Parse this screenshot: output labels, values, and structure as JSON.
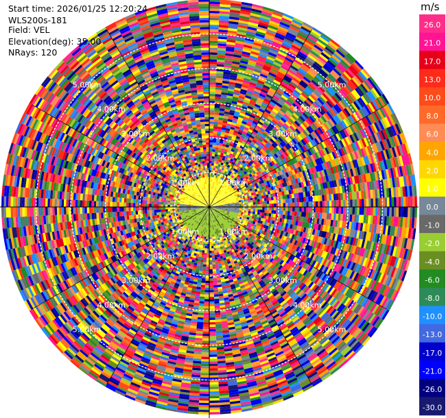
{
  "header": {
    "start_time": "Start time: 2026/01/25 12:20:24",
    "instrument": "WLS200s-181",
    "field": "Field: VEL",
    "elevation": "Elevation(deg): 35.00",
    "nrays": "NRays: 120"
  },
  "chart_data": {
    "type": "heatmap",
    "projection": "polar-ppi",
    "field": "VEL",
    "units": "m/s",
    "elevation_deg": 35.0,
    "n_rays": 120,
    "range_max_km": 6.0,
    "range_rings_km": [
      1.0,
      2.0,
      3.0,
      4.0,
      5.0
    ],
    "ring_labels": [
      "1.00km",
      "2.00km",
      "3.00km",
      "4.00km",
      "5.00km"
    ],
    "colorbar": {
      "label": "m/s",
      "ticks": [
        "26.0",
        "21.0",
        "17.0",
        "13.0",
        "10.0",
        "8.0",
        "6.0",
        "4.0",
        "2.0",
        "1.0",
        "0.0",
        "-1.0",
        "-2.0",
        "-4.0",
        "-6.0",
        "-8.0",
        "-10.0",
        "-13.0",
        "-17.0",
        "-21.0",
        "-26.0",
        "-30.0"
      ],
      "colors": [
        "#ff2d8a",
        "#ff1493",
        "#e8001a",
        "#ff2a1a",
        "#ff4a1a",
        "#ff6a2a",
        "#ff8c55",
        "#ffa500",
        "#ffd700",
        "#ffff00",
        "#778899",
        "#696969",
        "#9acd32",
        "#6b8e23",
        "#228b22",
        "#2e8b57",
        "#1e90ff",
        "#4169e1",
        "#0000cd",
        "#0000ff",
        "#000080",
        "#191970"
      ]
    },
    "near_field": {
      "description_free": true,
      "approx_range_km": 0.9,
      "dominant_values": [
        1.0,
        -1.0,
        -2.0
      ]
    }
  }
}
